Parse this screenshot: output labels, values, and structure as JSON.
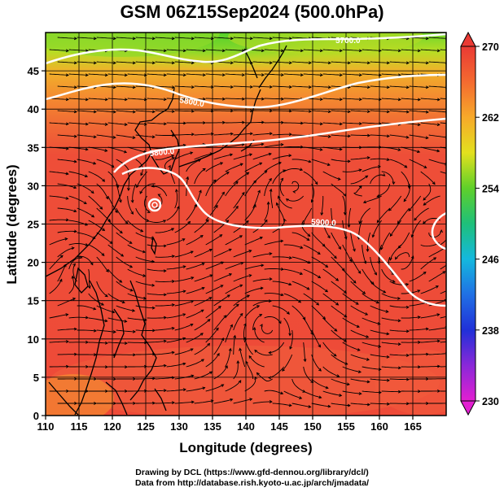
{
  "title": "GSM 06Z15Sep2024 (500.0hPa)",
  "credit_line1": "Drawing by DCL (https://www.gfd-dennou.org/library/dcl/)",
  "credit_line2": "Data from http://database.rish.kyoto-u.ac.jp/arch/jmadata/",
  "map": {
    "xlabel": "Longitude (degrees)",
    "ylabel": "Latitude  (degrees)",
    "lon_range": [
      110,
      170
    ],
    "lat_range": [
      0,
      50
    ],
    "lon_ticks": [
      "110",
      "115",
      "120",
      "125",
      "130",
      "135",
      "140",
      "145",
      "150",
      "155",
      "160",
      "165"
    ],
    "lat_ticks": [
      "0",
      "5",
      "10",
      "15",
      "20",
      "25",
      "30",
      "35",
      "40",
      "45"
    ],
    "grid": true,
    "contour_labels": [
      "5700.0",
      "5800.0",
      "5800.0",
      "5900.0"
    ]
  },
  "colorbar": {
    "ticks": [
      "270",
      "262",
      "254",
      "246",
      "238",
      "230"
    ],
    "range": [
      230,
      270
    ]
  },
  "colors": {
    "warm_red": "#ee4a38",
    "orange": "#f6a02a",
    "yellow": "#d8df1c",
    "green": "#4fd22a",
    "cyan": "#11b8dc",
    "blue": "#1a3fe0",
    "magenta": "#e21fd1"
  }
}
